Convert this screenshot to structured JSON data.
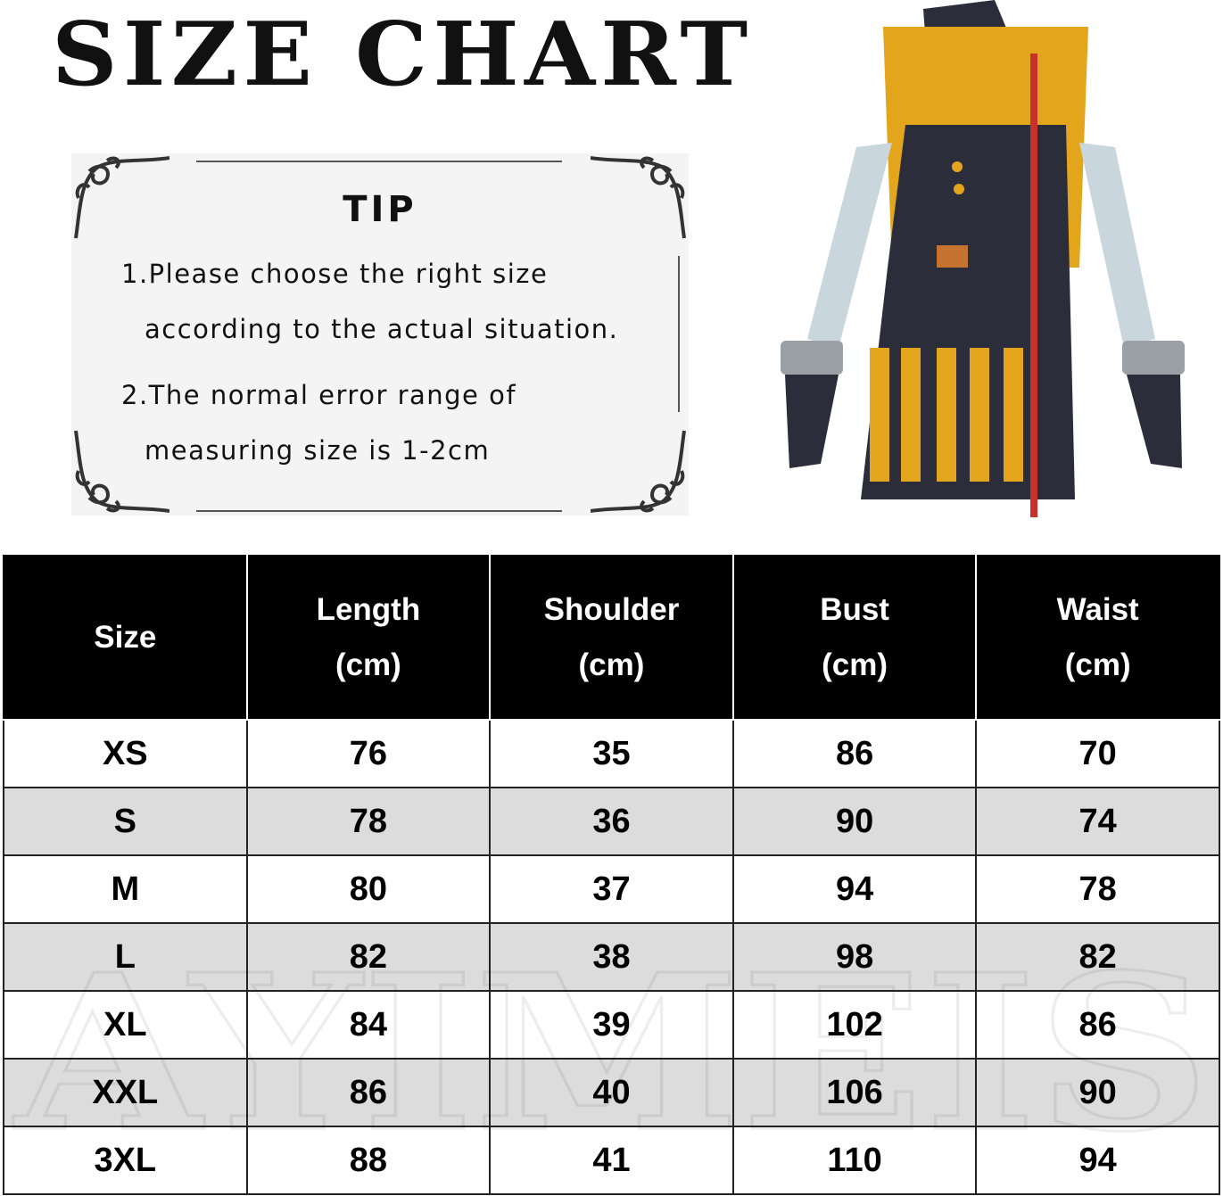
{
  "title": "SIZE CHART",
  "tip": {
    "heading": "TIP",
    "line1a": "1.Please choose the right size",
    "line1b": "according to the actual situation.",
    "line2a": "2.The normal error range of",
    "line2b": "measuring size is 1-2cm"
  },
  "product_image": "cosplay costume: yellow and navy sleeveless dress with arm sleeves, gloves and hood",
  "table": {
    "headers": [
      {
        "l1": "Size",
        "l2": ""
      },
      {
        "l1": "Length",
        "l2": "(cm)"
      },
      {
        "l1": "Shoulder",
        "l2": "(cm)"
      },
      {
        "l1": "Bust",
        "l2": "(cm)"
      },
      {
        "l1": "Waist",
        "l2": "(cm)"
      }
    ],
    "rows": [
      [
        "XS",
        "76",
        "35",
        "86",
        "70"
      ],
      [
        "S",
        "78",
        "36",
        "90",
        "74"
      ],
      [
        "M",
        "80",
        "37",
        "94",
        "78"
      ],
      [
        "L",
        "82",
        "38",
        "98",
        "82"
      ],
      [
        "XL",
        "84",
        "39",
        "102",
        "86"
      ],
      [
        "XXL",
        "86",
        "40",
        "106",
        "90"
      ],
      [
        "3XL",
        "88",
        "41",
        "110",
        "94"
      ]
    ]
  },
  "watermark": "AYIMEIS",
  "colors": {
    "header_bg": "#000000",
    "alt_row": "#dcdcdc",
    "costume_yellow": "#e3a51c",
    "costume_navy": "#2b2d3a"
  }
}
